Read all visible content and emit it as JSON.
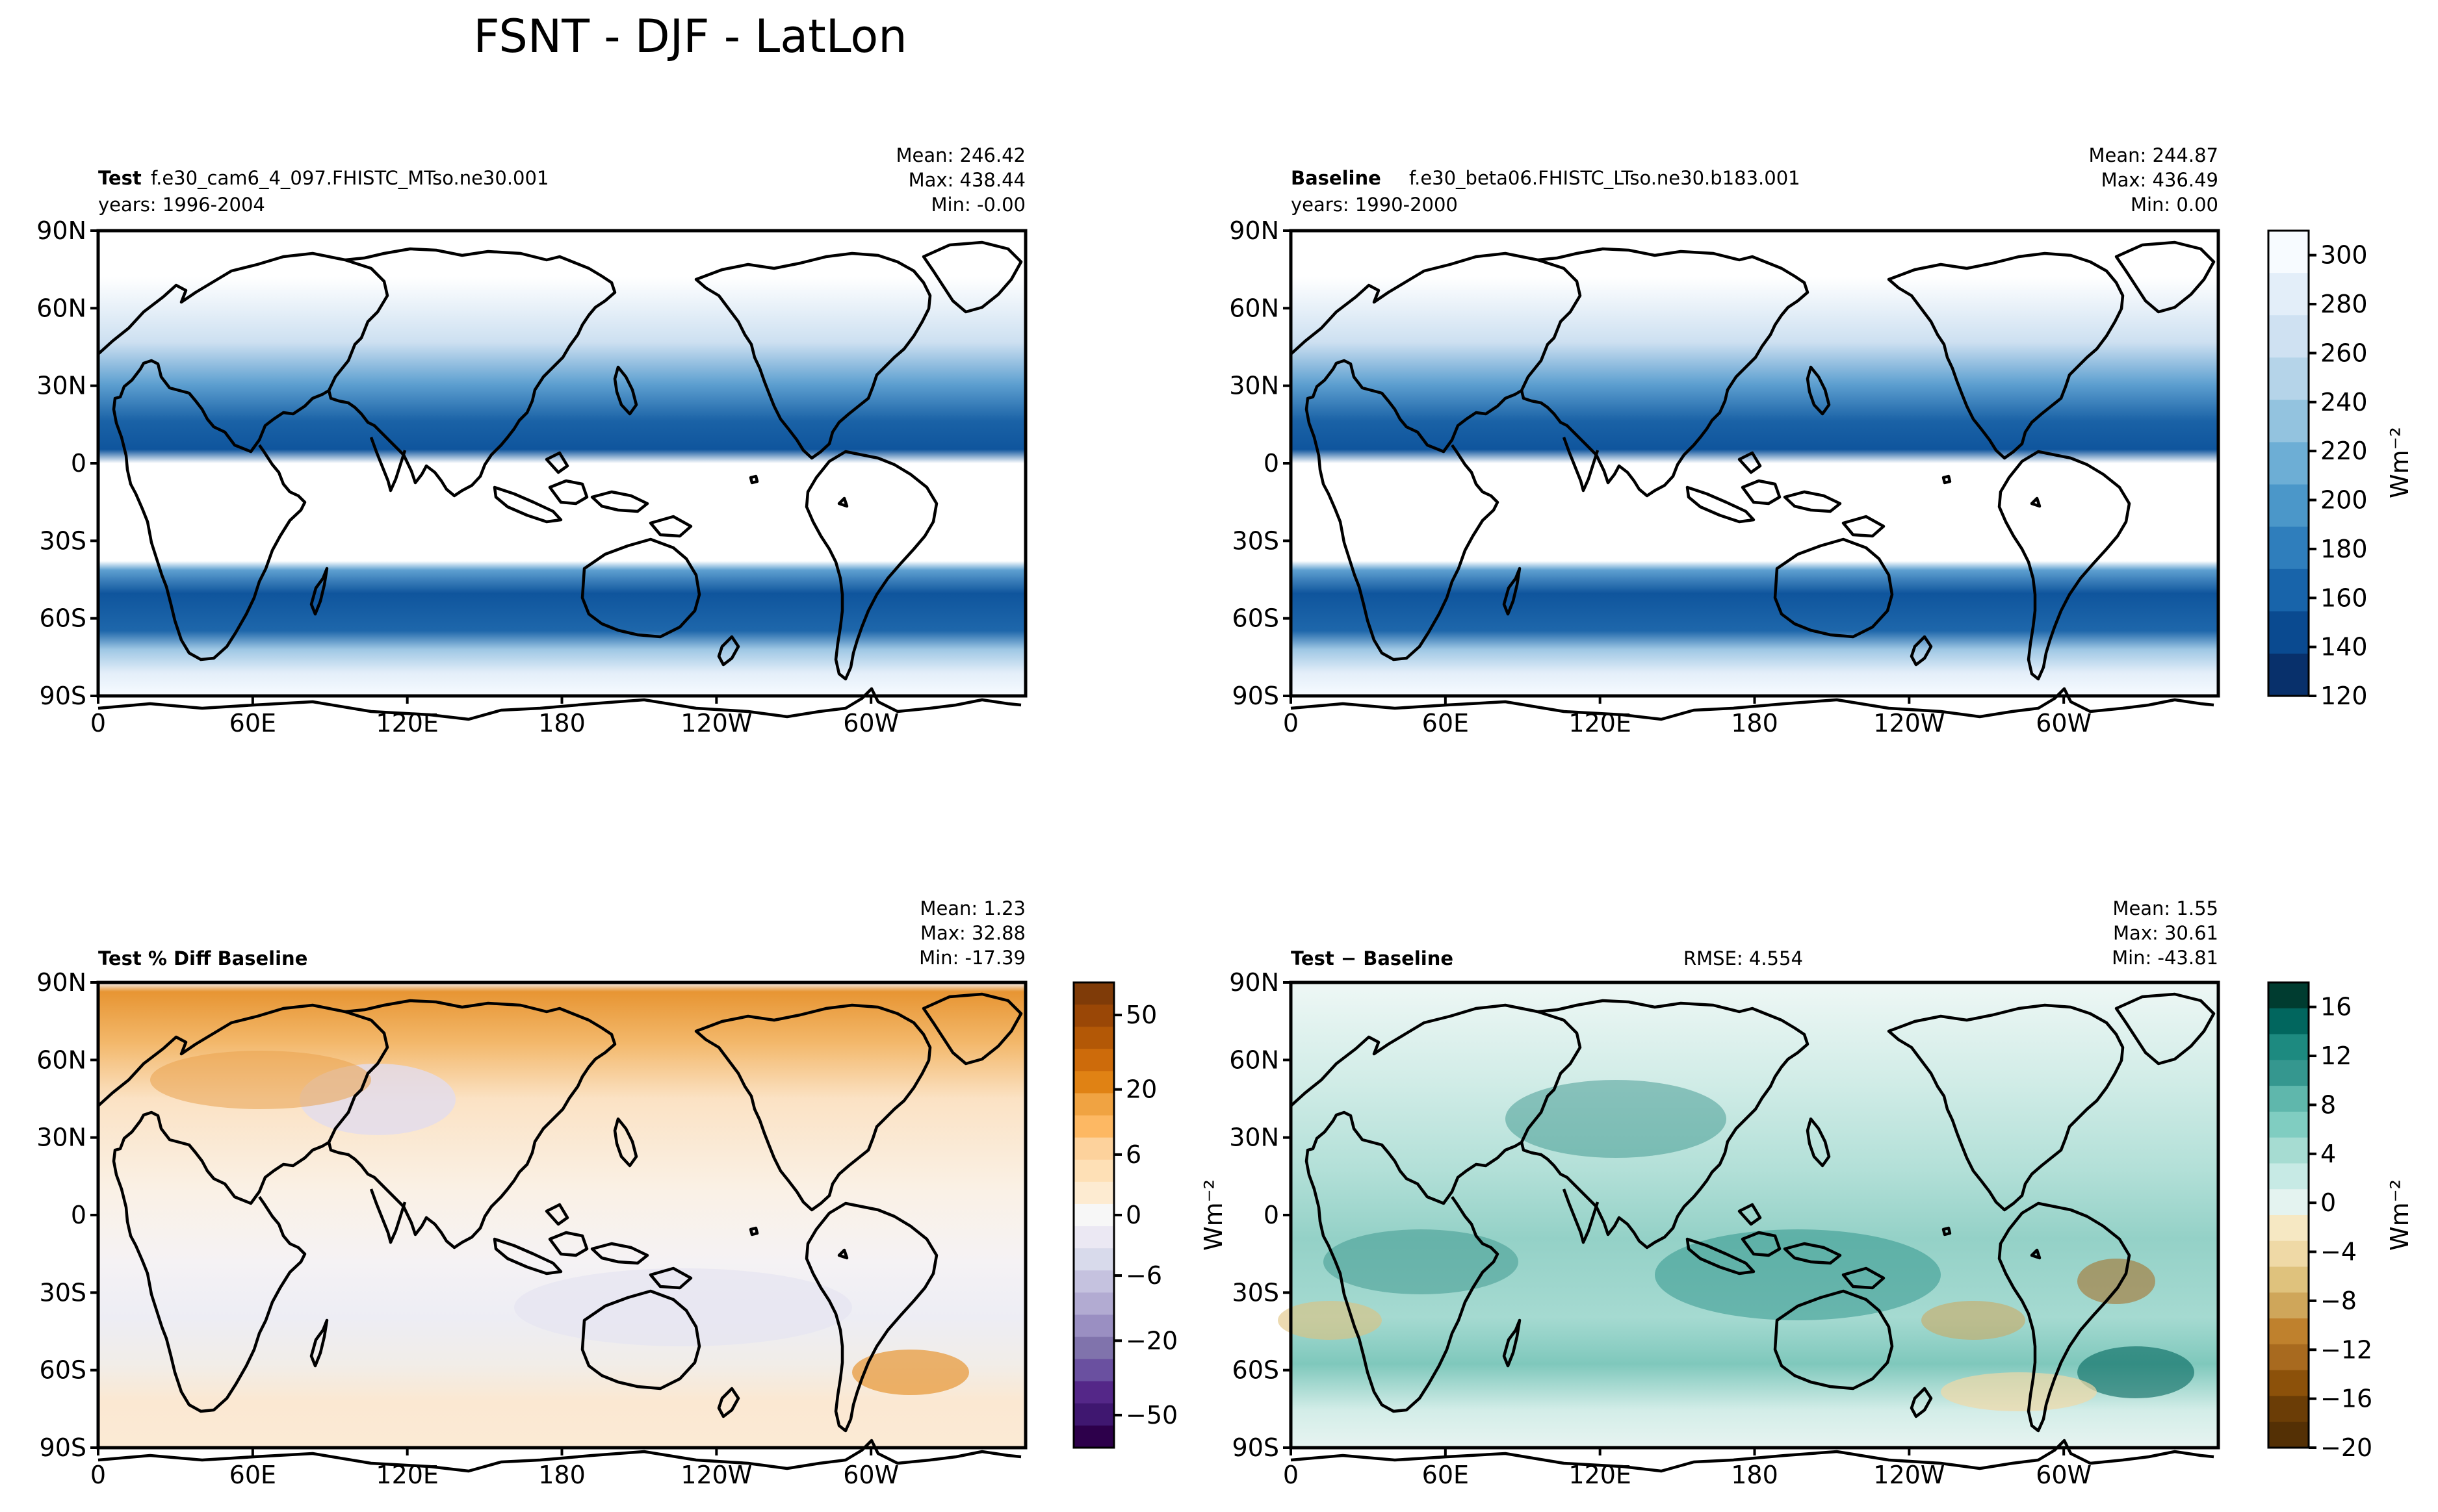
{
  "title": "FSNT - DJF - LatLon",
  "lat_labels": [
    "90N",
    "60N",
    "30N",
    "0",
    "30S",
    "60S",
    "90S"
  ],
  "lon_labels": [
    "0",
    "60E",
    "120E",
    "180",
    "120W",
    "60W"
  ],
  "panels": {
    "test": {
      "name_label": "Test",
      "case": "f.e30_cam6_4_097.FHISTC_MTso.ne30.001",
      "years": "years: 1996-2004",
      "mean": "Mean: 246.42",
      "max": "Max: 438.44",
      "min": "Min: -0.00"
    },
    "baseline": {
      "name_label": "Baseline",
      "case": "f.e30_beta06.FHISTC_LTso.ne30.b183.001",
      "years": "years: 1990-2000",
      "mean": "Mean: 244.87",
      "max": "Max: 436.49",
      "min": "Min:  0.00"
    },
    "pctdiff": {
      "name_label": "Test % Diff Baseline",
      "mean": "Mean:  1.23",
      "max": "Max: 32.88",
      "min": "Min: -17.39"
    },
    "diff": {
      "name_label": "Test − Baseline",
      "rmse": "RMSE: 4.554",
      "mean": "Mean:  1.55",
      "max": "Max: 30.61",
      "min": "Min: -43.81"
    }
  },
  "colorbars": {
    "top": {
      "ticks": [
        "120",
        "140",
        "160",
        "180",
        "200",
        "220",
        "240",
        "260",
        "280",
        "300"
      ],
      "units": "Wm⁻²",
      "colors": [
        "#f7fbff",
        "#e3eef9",
        "#cfe1f2",
        "#b5d4e9",
        "#93c3df",
        "#6daed5",
        "#4b97c9",
        "#2f7ebc",
        "#1864aa",
        "#0a4a90",
        "#08306b"
      ]
    },
    "pct": {
      "ticks": [
        "50",
        "20",
        "6",
        "0",
        "−6",
        "−20",
        "−50"
      ],
      "units": "Wm⁻²",
      "colors": [
        "#7f3b08",
        "#9a4706",
        "#b35806",
        "#cd6b0b",
        "#e08214",
        "#f0a342",
        "#fdb863",
        "#fdd29c",
        "#fee0b6",
        "#fdebd1",
        "#f7f7f7",
        "#ebe8f3",
        "#d8daeb",
        "#c5c2df",
        "#b2abd2",
        "#9a8fc2",
        "#8073ac",
        "#6a50a0",
        "#542788",
        "#3f1770",
        "#2d004b"
      ]
    },
    "diff": {
      "ticks": [
        "16",
        "12",
        "8",
        "4",
        "0",
        "−4",
        "−8",
        "−12",
        "−16",
        "−20"
      ],
      "units": "Wm⁻²",
      "colors": [
        "#003c30",
        "#01665e",
        "#1d8a80",
        "#35978f",
        "#5fb7ac",
        "#80cdc1",
        "#a6dcd2",
        "#c7eae5",
        "#e4f3f0",
        "#f6e8c3",
        "#efd9a6",
        "#dfc27d",
        "#cfa65a",
        "#bf812d",
        "#a86a1f",
        "#8c510a",
        "#6b3d06",
        "#543005"
      ]
    }
  }
}
